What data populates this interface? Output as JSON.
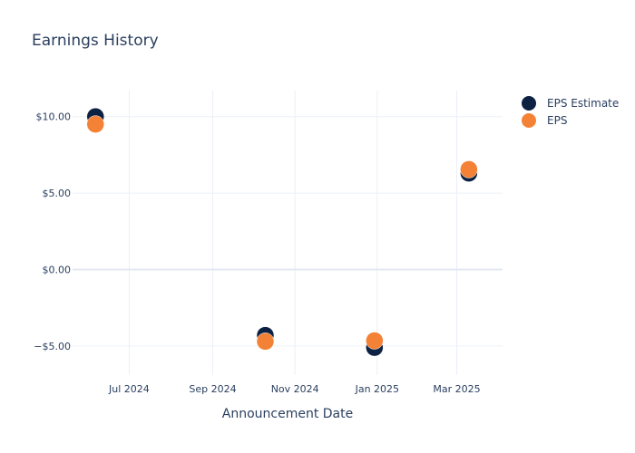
{
  "chart_data": {
    "type": "scatter",
    "title": "Earnings History",
    "xlabel": "Announcement Date",
    "ylabel": "",
    "x_tick_labels": [
      "Jul 2024",
      "Sep 2024",
      "Nov 2024",
      "Jan 2025",
      "Mar 2025"
    ],
    "x_ticks": [
      "2024-07-01",
      "2024-09-01",
      "2024-11-01",
      "2025-01-01",
      "2025-03-01"
    ],
    "x_range": [
      "2024-05-20",
      "2025-04-04"
    ],
    "y_tick_labels": [
      "$10.00",
      "$5.00",
      "$0.00",
      "−$5.00"
    ],
    "y_ticks": [
      10,
      5,
      0,
      -5
    ],
    "ylim": [
      -6.9,
      11.7
    ],
    "grid": true,
    "legend_position": "top-right",
    "series": [
      {
        "name": "EPS Estimate",
        "color": "#0d2143",
        "points": [
          {
            "x": "2024-06-06",
            "y": 10.0
          },
          {
            "x": "2024-10-10",
            "y": -4.3
          },
          {
            "x": "2024-12-30",
            "y": -5.1
          },
          {
            "x": "2025-03-10",
            "y": 6.3
          }
        ]
      },
      {
        "name": "EPS",
        "color": "#f48236",
        "points": [
          {
            "x": "2024-06-06",
            "y": 9.5
          },
          {
            "x": "2024-10-10",
            "y": -4.7
          },
          {
            "x": "2024-12-30",
            "y": -4.65
          },
          {
            "x": "2025-03-10",
            "y": 6.55
          }
        ]
      }
    ]
  }
}
